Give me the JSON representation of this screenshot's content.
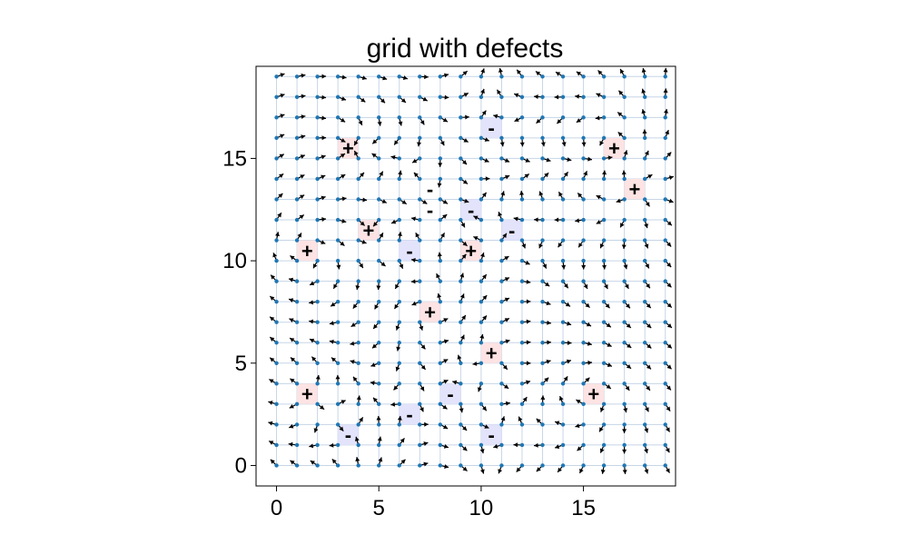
{
  "chart_data": {
    "type": "quiver",
    "title": "grid with defects",
    "xlabel": "",
    "ylabel": "",
    "xlim": [
      -1,
      19.5
    ],
    "ylim": [
      -1,
      19.5
    ],
    "grid": true,
    "aspect": "equal",
    "grid_size": 20,
    "x_ticks": [
      0,
      5,
      10,
      15
    ],
    "y_ticks": [
      0,
      5,
      10,
      15
    ],
    "colors": {
      "node": "#1f77b4",
      "grid_line": "#b0c4de",
      "arrow": "#000000",
      "plus_highlight": "#fde3e3",
      "minus_highlight": "#e3e3fb"
    },
    "defects": [
      {
        "x": 3.5,
        "y": 15.5,
        "charge": "+"
      },
      {
        "x": 16.5,
        "y": 15.5,
        "charge": "+"
      },
      {
        "x": 17.5,
        "y": 13.5,
        "charge": "+"
      },
      {
        "x": 4.5,
        "y": 11.5,
        "charge": "+"
      },
      {
        "x": 1.5,
        "y": 10.5,
        "charge": "+"
      },
      {
        "x": 9.5,
        "y": 10.5,
        "charge": "+"
      },
      {
        "x": 7.5,
        "y": 7.5,
        "charge": "+"
      },
      {
        "x": 10.5,
        "y": 5.5,
        "charge": "+"
      },
      {
        "x": 1.5,
        "y": 3.5,
        "charge": "+"
      },
      {
        "x": 15.5,
        "y": 3.5,
        "charge": "+"
      },
      {
        "x": 10.5,
        "y": 16.5,
        "charge": "-"
      },
      {
        "x": 9.5,
        "y": 12.5,
        "charge": "-"
      },
      {
        "x": 11.5,
        "y": 11.5,
        "charge": "-"
      },
      {
        "x": 6.5,
        "y": 10.5,
        "charge": "-"
      },
      {
        "x": 8.5,
        "y": 3.5,
        "charge": "-"
      },
      {
        "x": 6.5,
        "y": 2.5,
        "charge": "-"
      },
      {
        "x": 3.5,
        "y": 1.5,
        "charge": "-"
      },
      {
        "x": 10.5,
        "y": 1.5,
        "charge": "-"
      },
      {
        "x": 7.5,
        "y": 13.5,
        "charge": "-",
        "highlighted": false
      },
      {
        "x": 7.5,
        "y": 12.5,
        "charge": "-",
        "highlighted": false
      }
    ]
  }
}
